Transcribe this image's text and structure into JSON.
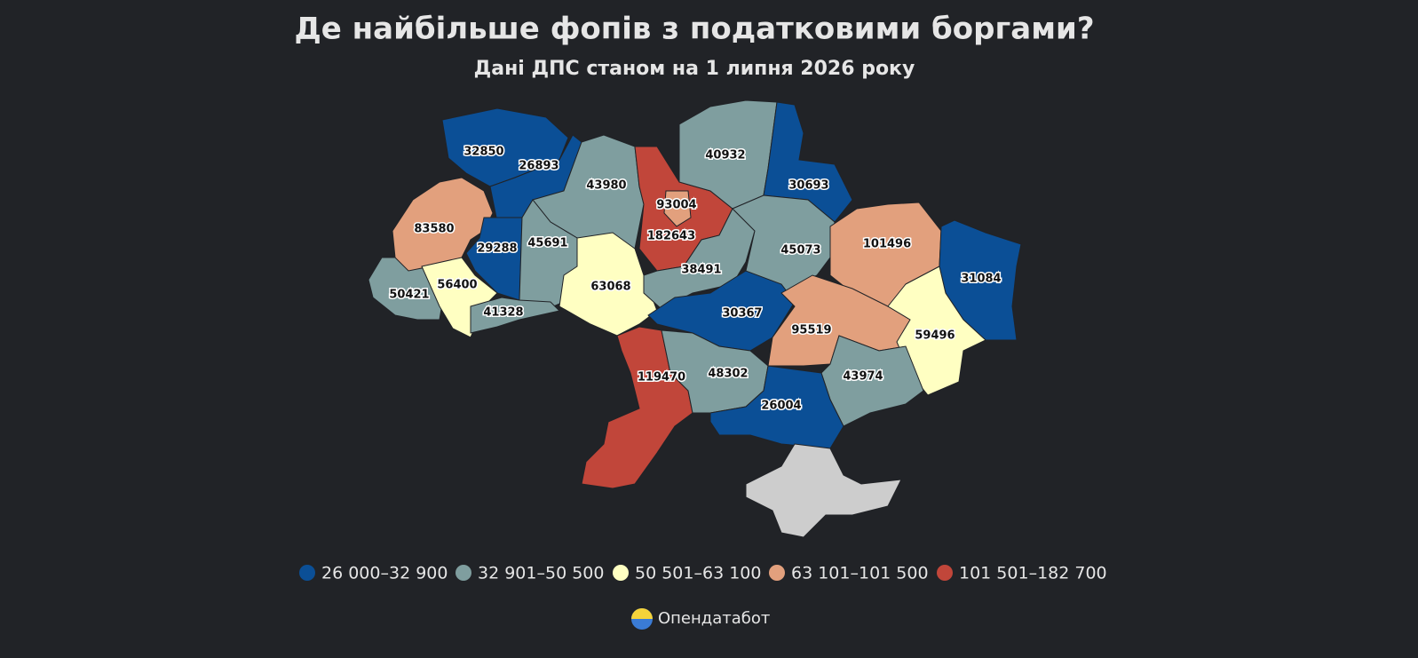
{
  "title": "Де найбільше фопів з податковими боргами?",
  "subtitle": "Дані ДПС станом на 1 липня 2026 року",
  "regions": [
    {
      "value": 32850,
      "color": "#0b4f96"
    },
    {
      "value": 26893,
      "color": "#0b4f96"
    },
    {
      "value": 43980,
      "color": "#7f9e9f"
    },
    {
      "value": 182643,
      "color": "#c1463a"
    },
    {
      "value": 93004,
      "color": "#e2a07d"
    },
    {
      "value": 40932,
      "color": "#7f9e9f"
    },
    {
      "value": 30693,
      "color": "#0b4f96"
    },
    {
      "value": 83580,
      "color": "#e2a07d"
    },
    {
      "value": 29288,
      "color": "#0b4f96"
    },
    {
      "value": 45691,
      "color": "#7f9e9f"
    },
    {
      "value": 63068,
      "color": "#ffffc2"
    },
    {
      "value": 38491,
      "color": "#7f9e9f"
    },
    {
      "value": 45073,
      "color": "#7f9e9f"
    },
    {
      "value": 101496,
      "color": "#e2a07d"
    },
    {
      "value": 31084,
      "color": "#0b4f96"
    },
    {
      "value": 50421,
      "color": "#7f9e9f"
    },
    {
      "value": 56400,
      "color": "#ffffc2"
    },
    {
      "value": 41328,
      "color": "#7f9e9f"
    },
    {
      "value": 30367,
      "color": "#0b4f96"
    },
    {
      "value": 95519,
      "color": "#e2a07d"
    },
    {
      "value": 59496,
      "color": "#ffffc2"
    },
    {
      "value": 119470,
      "color": "#c1463a"
    },
    {
      "value": 48302,
      "color": "#7f9e9f"
    },
    {
      "value": 43974,
      "color": "#7f9e9f"
    },
    {
      "value": 26004,
      "color": "#0b4f96"
    }
  ],
  "legend": [
    {
      "label": "26 000–32 900",
      "color": "#0b4f96"
    },
    {
      "label": "32 901–50 500",
      "color": "#7f9e9f"
    },
    {
      "label": "50 501–63 100",
      "color": "#ffffc2"
    },
    {
      "label": "63 101–101 500",
      "color": "#e2a07d"
    },
    {
      "label": "101 501–182 700",
      "color": "#c1463a"
    }
  ],
  "brand": "Опендатабот"
}
